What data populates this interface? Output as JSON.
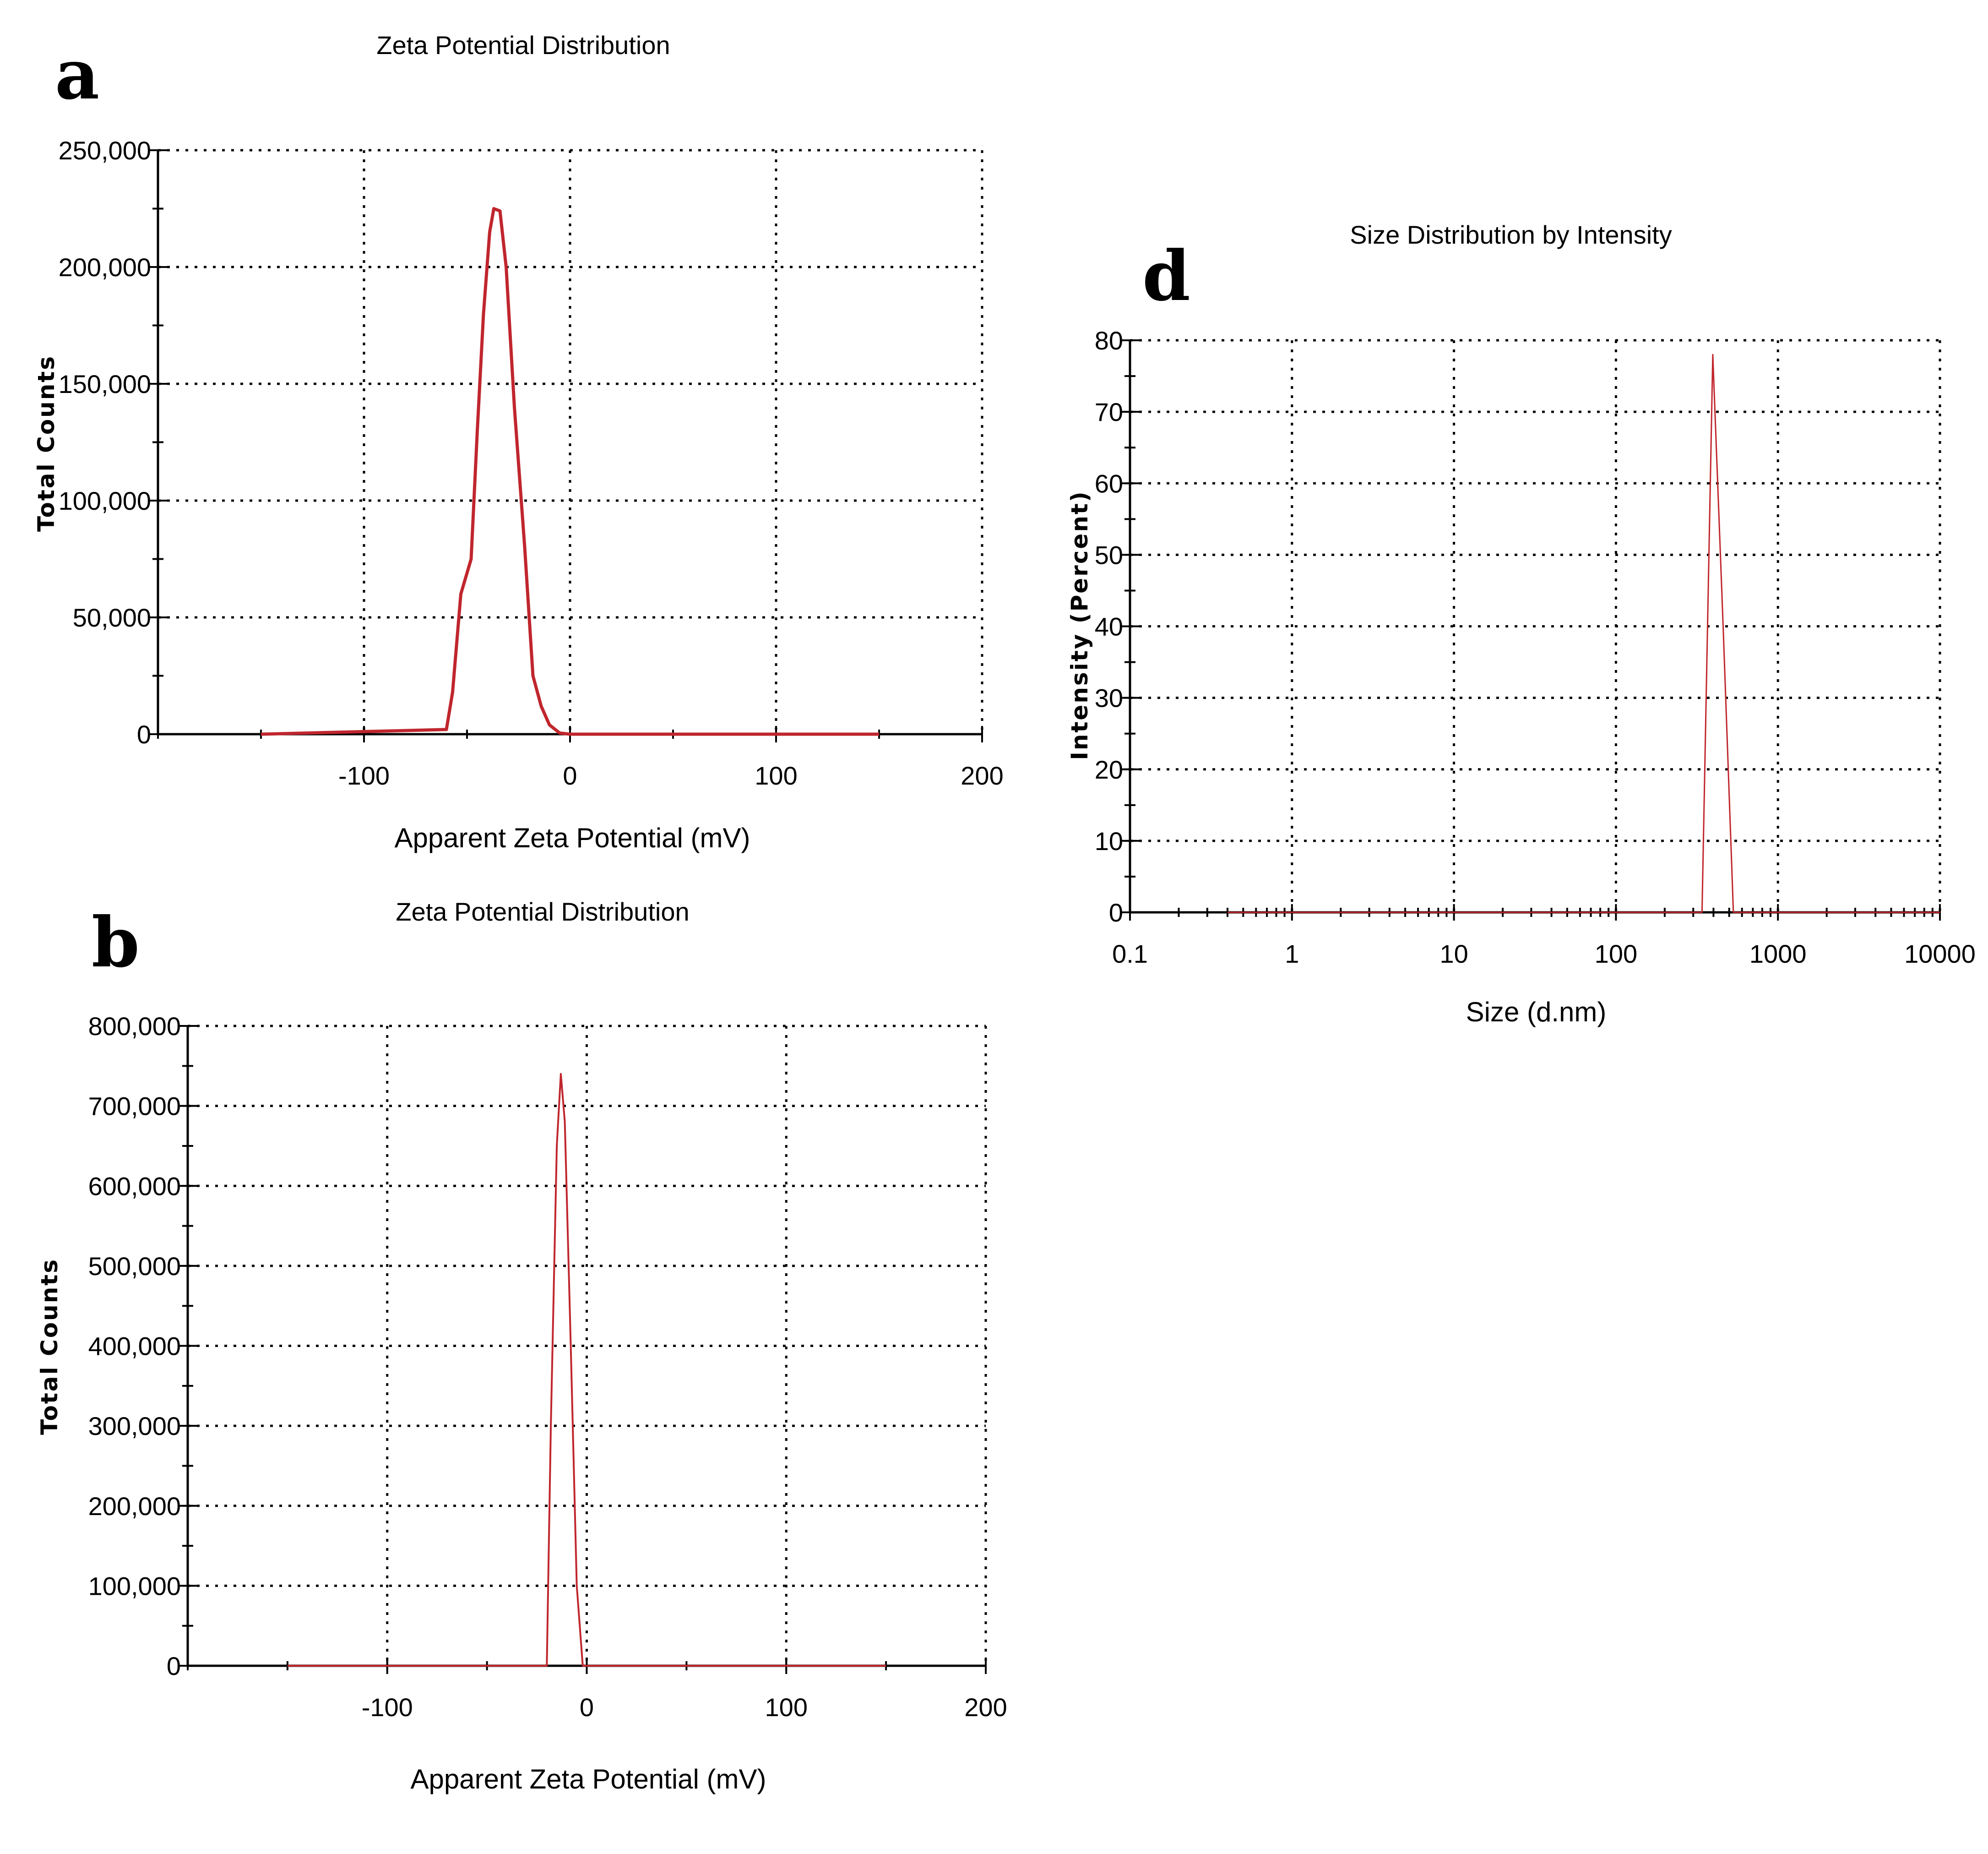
{
  "colors": {
    "series_line": "#c0262d",
    "axis": "#000000"
  },
  "chart_data": [
    {
      "id": "a",
      "panel_label": "a",
      "type": "line",
      "title": "Zeta Potential Distribution",
      "xlabel": "Apparent Zeta Potential (mV)",
      "ylabel": "Total Counts",
      "xlim": [
        -200,
        200
      ],
      "ylim": [
        0,
        250000
      ],
      "x_scale": "linear",
      "xticks": [
        -100,
        0,
        100,
        200
      ],
      "xtick_labels": [
        "-100",
        "0",
        "100",
        "200"
      ],
      "yticks": [
        0,
        50000,
        100000,
        150000,
        200000,
        250000
      ],
      "ytick_labels": [
        "0",
        "50,000",
        "100,000",
        "150,000",
        "200,000",
        "250,000"
      ],
      "grid": true,
      "series": [
        {
          "x": [
            -150,
            -60,
            -57,
            -53,
            -48,
            -45,
            -42,
            -39,
            -37,
            -34,
            -31,
            -27,
            -22,
            -18,
            -14,
            -10,
            -5,
            0,
            50,
            100,
            150
          ],
          "y": [
            0,
            2000,
            18000,
            60000,
            75000,
            130000,
            180000,
            215000,
            225000,
            224000,
            200000,
            140000,
            80000,
            25000,
            12000,
            4000,
            500,
            0,
            0,
            0,
            0
          ]
        }
      ]
    },
    {
      "id": "b",
      "panel_label": "b",
      "type": "line",
      "title": "Zeta Potential Distribution",
      "xlabel": "Apparent Zeta Potential (mV)",
      "ylabel": "Total Counts",
      "xlim": [
        -200,
        200
      ],
      "ylim": [
        0,
        800000
      ],
      "x_scale": "linear",
      "xticks": [
        -100,
        0,
        100,
        200
      ],
      "xtick_labels": [
        "-100",
        "0",
        "100",
        "200"
      ],
      "yticks": [
        0,
        100000,
        200000,
        300000,
        400000,
        500000,
        600000,
        700000,
        800000
      ],
      "ytick_labels": [
        "0",
        "100,000",
        "200,000",
        "300,000",
        "400,000",
        "500,000",
        "600,000",
        "700,000",
        "800,000"
      ],
      "grid": true,
      "series": [
        {
          "x": [
            -150,
            -20,
            -18,
            -15,
            -13,
            -11,
            -8,
            -5,
            -2,
            0,
            50,
            100,
            150
          ],
          "y": [
            0,
            0,
            300000,
            650000,
            740000,
            680000,
            400000,
            100000,
            0,
            0,
            0,
            0,
            0
          ]
        }
      ]
    },
    {
      "id": "d",
      "panel_label": "d",
      "type": "line",
      "title": "Size Distribution by Intensity",
      "xlabel": "Size (d.nm)",
      "ylabel": "Intensity (Percent)",
      "xlim": [
        0.1,
        10000
      ],
      "ylim": [
        0,
        80
      ],
      "x_scale": "log",
      "xticks": [
        0.1,
        1,
        10,
        100,
        1000,
        10000
      ],
      "xtick_labels": [
        "0.1",
        "1",
        "10",
        "100",
        "1000",
        "10000"
      ],
      "yticks": [
        0,
        10,
        20,
        30,
        40,
        50,
        60,
        70,
        80
      ],
      "ytick_labels": [
        "0",
        "10",
        "20",
        "30",
        "40",
        "50",
        "60",
        "70",
        "80"
      ],
      "grid": true,
      "series": [
        {
          "x": [
            0.4,
            10,
            100,
            340,
            396,
            459,
            531,
            1000,
            10000
          ],
          "y": [
            0,
            0,
            0,
            0,
            78,
            40,
            0,
            0,
            0
          ]
        }
      ]
    }
  ]
}
